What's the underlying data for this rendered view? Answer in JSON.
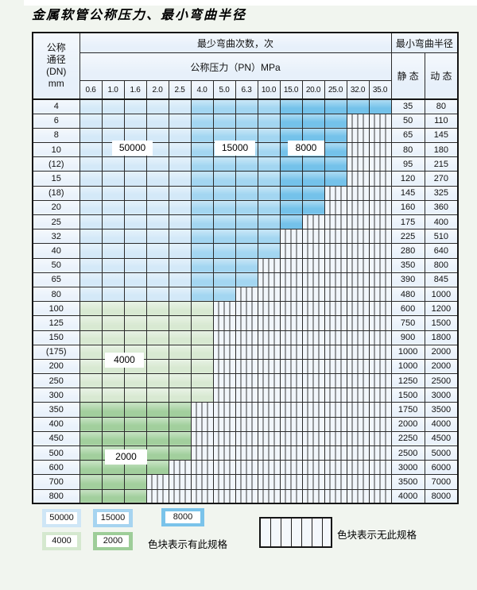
{
  "title": "金属软管公称压力、最小弯曲半径",
  "table": {
    "header": {
      "dn_label_lines": [
        "公称",
        "通径",
        "(DN)",
        "mm"
      ],
      "cycles_label": "最少弯曲次数，次",
      "pressure_label": "公称压力（PN）MPa",
      "radius_label": "最小弯曲半径",
      "static_label": "静 态",
      "dynamic_label": "动 态",
      "pressures": [
        "0.6",
        "1.0",
        "1.6",
        "2.0",
        "2.5",
        "4.0",
        "5.0",
        "6.3",
        "10.0",
        "15.0",
        "20.0",
        "25.0",
        "32.0",
        "35.0"
      ]
    },
    "rows": [
      {
        "dn": "4",
        "colored": 14,
        "palette": "blue",
        "static": "35",
        "dynamic": "80"
      },
      {
        "dn": "6",
        "colored": 12,
        "palette": "blue",
        "static": "50",
        "dynamic": "110"
      },
      {
        "dn": "8",
        "colored": 12,
        "palette": "blue",
        "static": "65",
        "dynamic": "145"
      },
      {
        "dn": "10",
        "colored": 12,
        "palette": "blue",
        "static": "80",
        "dynamic": "180"
      },
      {
        "dn": "(12)",
        "colored": 12,
        "palette": "blue",
        "static": "95",
        "dynamic": "215"
      },
      {
        "dn": "15",
        "colored": 12,
        "palette": "blue",
        "static": "120",
        "dynamic": "270"
      },
      {
        "dn": "(18)",
        "colored": 11,
        "palette": "blue",
        "static": "145",
        "dynamic": "325"
      },
      {
        "dn": "20",
        "colored": 11,
        "palette": "blue",
        "static": "160",
        "dynamic": "360"
      },
      {
        "dn": "25",
        "colored": 10,
        "palette": "blue",
        "static": "175",
        "dynamic": "400"
      },
      {
        "dn": "32",
        "colored": 9,
        "palette": "blue",
        "static": "225",
        "dynamic": "510"
      },
      {
        "dn": "40",
        "colored": 9,
        "palette": "blue",
        "static": "280",
        "dynamic": "640"
      },
      {
        "dn": "50",
        "colored": 8,
        "palette": "blue",
        "static": "350",
        "dynamic": "800"
      },
      {
        "dn": "65",
        "colored": 8,
        "palette": "blue",
        "static": "390",
        "dynamic": "845"
      },
      {
        "dn": "80",
        "colored": 7,
        "palette": "blue",
        "static": "480",
        "dynamic": "1000"
      },
      {
        "dn": "100",
        "colored": 6,
        "palette": "green_light",
        "static": "600",
        "dynamic": "1200"
      },
      {
        "dn": "125",
        "colored": 6,
        "palette": "green_light",
        "static": "750",
        "dynamic": "1500"
      },
      {
        "dn": "150",
        "colored": 6,
        "palette": "green_light",
        "static": "900",
        "dynamic": "1800"
      },
      {
        "dn": "(175)",
        "colored": 6,
        "palette": "green_light",
        "static": "1000",
        "dynamic": "2000"
      },
      {
        "dn": "200",
        "colored": 6,
        "palette": "green_light",
        "static": "1000",
        "dynamic": "2000"
      },
      {
        "dn": "250",
        "colored": 6,
        "palette": "green_light",
        "static": "1250",
        "dynamic": "2500"
      },
      {
        "dn": "300",
        "colored": 6,
        "palette": "green_light",
        "static": "1500",
        "dynamic": "3000"
      },
      {
        "dn": "350",
        "colored": 5,
        "palette": "green_dark",
        "static": "1750",
        "dynamic": "3500"
      },
      {
        "dn": "400",
        "colored": 5,
        "palette": "green_dark",
        "static": "2000",
        "dynamic": "4000"
      },
      {
        "dn": "450",
        "colored": 5,
        "palette": "green_dark",
        "static": "2250",
        "dynamic": "4500"
      },
      {
        "dn": "500",
        "colored": 5,
        "palette": "green_dark",
        "static": "2500",
        "dynamic": "5000"
      },
      {
        "dn": "600",
        "colored": 4,
        "palette": "green_dark",
        "static": "3000",
        "dynamic": "6000"
      },
      {
        "dn": "700",
        "colored": 3,
        "palette": "green_dark",
        "static": "3500",
        "dynamic": "7000"
      },
      {
        "dn": "800",
        "colored": 3,
        "palette": "green_dark",
        "static": "4000",
        "dynamic": "8000"
      }
    ]
  },
  "overlays": {
    "cycles_50000": "50000",
    "cycles_15000": "15000",
    "cycles_8000": "8000",
    "cycles_4000": "4000",
    "cycles_2000": "2000"
  },
  "legend": {
    "swatches": {
      "s50000": {
        "label": "50000",
        "color": "#cfe6f6"
      },
      "s15000": {
        "label": "15000",
        "color": "#a6d4f0"
      },
      "s8000": {
        "label": "8000",
        "color": "#7ac3ea"
      },
      "s4000": {
        "label": "4000",
        "color": "#d5e8cf"
      },
      "s2000": {
        "label": "2000",
        "color": "#9ecd99"
      }
    },
    "has_spec_text": "色块表示有此规格",
    "no_spec_text": "色块表示无此规格"
  },
  "colors": {
    "blue_light": "#d4e9f8",
    "blue_mid": "#a3d6f1",
    "blue_dark": "#74c2ea",
    "green_light": "#d8e9d2",
    "green_dark": "#a2cf9d"
  }
}
